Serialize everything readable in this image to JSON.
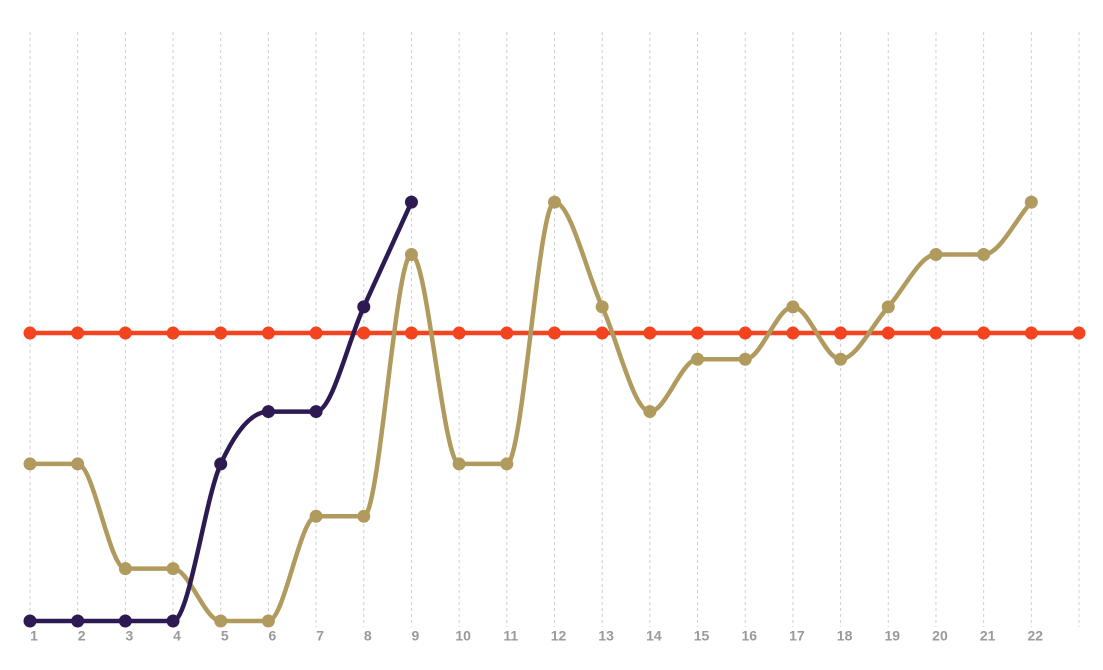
{
  "chart_data": {
    "type": "line",
    "categories": [
      "1",
      "2",
      "3",
      "4",
      "5",
      "6",
      "7",
      "8",
      "9",
      "10",
      "11",
      "12",
      "13",
      "14",
      "15",
      "16",
      "17",
      "18",
      "19",
      "20",
      "21",
      "22",
      null
    ],
    "series": [
      {
        "name": null,
        "color": "#f4431f",
        "values": [
          5.5,
          5.5,
          5.5,
          5.5,
          5.5,
          5.5,
          5.5,
          5.5,
          5.5,
          5.5,
          5.5,
          5.5,
          5.5,
          5.5,
          5.5,
          5.5,
          5.5,
          5.5,
          5.5,
          5.5,
          5.5,
          5.5,
          5.5
        ]
      },
      {
        "name": null,
        "color": "#b09a5e",
        "values": [
          3,
          3,
          1,
          1,
          0,
          0,
          2,
          2,
          7,
          3,
          3,
          8,
          6,
          4,
          5,
          5,
          6,
          5,
          6,
          7,
          7,
          8,
          null
        ]
      },
      {
        "name": null,
        "color": "#2e1a52",
        "values": [
          0,
          0,
          0,
          0,
          3,
          4,
          4,
          6,
          8,
          null,
          null,
          null,
          null,
          null,
          null,
          null,
          null,
          null,
          null,
          null,
          null,
          null,
          null
        ]
      }
    ],
    "ylim": [
      0,
      11.25
    ],
    "grid": "vertical"
  }
}
